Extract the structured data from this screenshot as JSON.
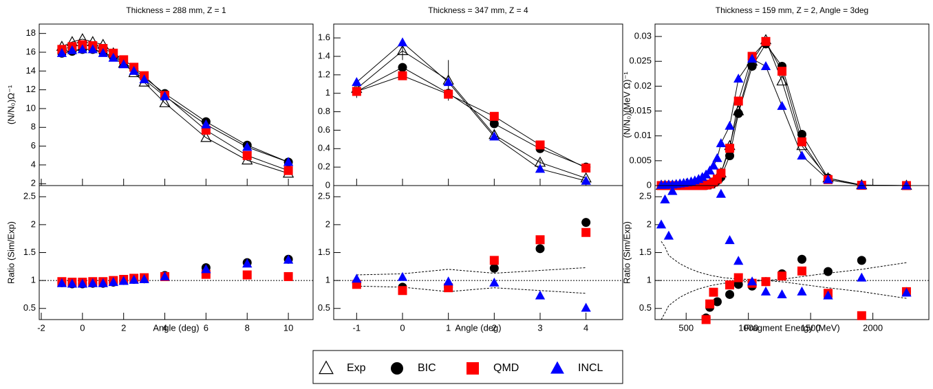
{
  "chart_data": [
    {
      "type": "line",
      "title": "Thickness = 288 mm, Z = 1",
      "ylabel": "(N/N₀)Ω⁻¹",
      "x": [
        -1,
        -0.5,
        0,
        0.5,
        1,
        1.5,
        2,
        2.5,
        3,
        4,
        6,
        8,
        10
      ],
      "xlim": [
        -2.1,
        11.2
      ],
      "xticks": [
        -2,
        0,
        2,
        4,
        6,
        8,
        10
      ],
      "ylim": [
        1.8,
        19
      ],
      "yticks": [
        2,
        4,
        6,
        8,
        10,
        12,
        14,
        16,
        18
      ],
      "series": [
        {
          "name": "Exp",
          "color": "#000000",
          "marker": "open-triangle",
          "values": [
            16.6,
            17.1,
            17.4,
            17.1,
            16.8,
            15.9,
            14.8,
            13.8,
            12.8,
            10.6,
            6.9,
            4.5,
            3.1
          ]
        },
        {
          "name": "BIC",
          "color": "#000000",
          "marker": "circle",
          "values": [
            15.9,
            16.1,
            16.3,
            16.3,
            16.0,
            15.5,
            14.9,
            14.2,
            13.3,
            11.6,
            8.6,
            6.1,
            4.3
          ]
        },
        {
          "name": "QMD",
          "color": "#ff0000",
          "marker": "square",
          "values": [
            16.3,
            16.6,
            16.8,
            16.7,
            16.4,
            15.9,
            15.2,
            14.4,
            13.5,
            11.4,
            7.7,
            5.0,
            3.4
          ]
        },
        {
          "name": "INCL",
          "color": "#0000ff",
          "marker": "triangle",
          "values": [
            15.9,
            16.2,
            16.3,
            16.3,
            15.9,
            15.4,
            14.7,
            14.0,
            13.1,
            11.3,
            8.3,
            5.9,
            4.3
          ]
        }
      ]
    },
    {
      "type": "line",
      "title": "Thickness = 347 mm, Z = 4",
      "x": [
        -1,
        0,
        1,
        2,
        3,
        4
      ],
      "xlim": [
        -1.5,
        4.8
      ],
      "xticks": [
        -1,
        0,
        1,
        2,
        3,
        4
      ],
      "ylim": [
        0,
        1.75
      ],
      "yticks": [
        0,
        0.2,
        0.4,
        0.6,
        0.8,
        1,
        1.2,
        1.4,
        1.6
      ],
      "series": [
        {
          "name": "Exp",
          "color": "#000000",
          "marker": "open-triangle",
          "values": [
            1.05,
            1.46,
            1.14,
            0.55,
            0.25,
            0.08
          ],
          "errors": [
            0.1,
            0.1,
            0.22,
            0.05,
            0.03,
            0.02
          ]
        },
        {
          "name": "BIC",
          "color": "#000000",
          "marker": "circle",
          "values": [
            1.02,
            1.28,
            1.0,
            0.67,
            0.4,
            0.2
          ]
        },
        {
          "name": "QMD",
          "color": "#ff0000",
          "marker": "square",
          "values": [
            1.02,
            1.19,
            0.99,
            0.75,
            0.44,
            0.19
          ]
        },
        {
          "name": "INCL",
          "color": "#0000ff",
          "marker": "triangle",
          "values": [
            1.12,
            1.55,
            1.12,
            0.53,
            0.18,
            0.05
          ]
        }
      ]
    },
    {
      "type": "line",
      "title": "Thickness = 159 mm, Z = 2, Angle = 3deg",
      "ylabel": "(N/N₀)(MeV Ω)⁻¹",
      "x": [
        300,
        330,
        360,
        390,
        420,
        450,
        480,
        510,
        540,
        570,
        600,
        630,
        660,
        690,
        720,
        750,
        780,
        850,
        920,
        1030,
        1140,
        1270,
        1430,
        1640,
        1910,
        2270
      ],
      "xlim": [
        250,
        2450
      ],
      "xticks": [
        500,
        1000,
        1500,
        2000
      ],
      "ylim": [
        0,
        0.0325
      ],
      "yticks": [
        0,
        0.005,
        0.01,
        0.015,
        0.02,
        0.025,
        0.03
      ],
      "series": [
        {
          "name": "Exp",
          "color": "#000000",
          "marker": "open-triangle",
          "values": [
            0,
            0,
            0,
            0,
            0,
            0,
            0,
            0,
            0,
            0,
            0,
            0,
            0.0001,
            0.0003,
            0.0008,
            0.0015,
            0.0025,
            0.008,
            0.015,
            0.025,
            0.0293,
            0.021,
            0.008,
            0.0015,
            0.0001,
            0
          ]
        },
        {
          "name": "BIC",
          "color": "#000000",
          "marker": "circle",
          "values": [
            0,
            0,
            0,
            0,
            0,
            0,
            0,
            0,
            0,
            0,
            0,
            0,
            0.0001,
            0.0002,
            0.0005,
            0.001,
            0.0017,
            0.006,
            0.0145,
            0.024,
            0.0285,
            0.024,
            0.0103,
            0.0015,
            0.0001,
            0
          ]
        },
        {
          "name": "QMD",
          "color": "#ff0000",
          "marker": "square",
          "values": [
            0,
            0,
            0,
            0,
            0,
            0,
            0,
            0,
            0,
            0,
            0,
            0,
            0.0001,
            0.0003,
            0.0007,
            0.0013,
            0.0025,
            0.0075,
            0.017,
            0.026,
            0.029,
            0.023,
            0.0088,
            0.0012,
            5e-05,
            0
          ]
        },
        {
          "name": "INCL",
          "color": "#0000ff",
          "marker": "triangle",
          "values": [
            0.0001,
            0.0001,
            0.0002,
            0.0002,
            0.0003,
            0.0004,
            0.0005,
            0.0006,
            0.0008,
            0.001,
            0.0013,
            0.0017,
            0.0022,
            0.003,
            0.004,
            0.0055,
            0.0085,
            0.012,
            0.0215,
            0.0255,
            0.024,
            0.016,
            0.006,
            0.0012,
            5e-05,
            0
          ]
        }
      ]
    },
    {
      "type": "scatter",
      "xlabel": "Angle (deg)",
      "ylabel": "Ratio (Sim/Exp)",
      "hline": 1,
      "x": [
        -1,
        -0.5,
        0,
        0.5,
        1,
        1.5,
        2,
        2.5,
        3,
        4,
        6,
        8,
        10
      ],
      "xlim": [
        -2.1,
        11.2
      ],
      "xticks": [
        -2,
        0,
        2,
        4,
        6,
        8,
        10
      ],
      "ylim": [
        0.3,
        2.7
      ],
      "yticks": [
        0.5,
        1,
        1.5,
        2,
        2.5
      ],
      "series": [
        {
          "name": "BIC",
          "color": "#000000",
          "marker": "circle",
          "values": [
            0.96,
            0.94,
            0.94,
            0.95,
            0.95,
            0.97,
            1.0,
            1.02,
            1.03,
            1.09,
            1.23,
            1.32,
            1.38
          ]
        },
        {
          "name": "QMD",
          "color": "#ff0000",
          "marker": "square",
          "values": [
            0.98,
            0.97,
            0.97,
            0.98,
            0.98,
            1.0,
            1.02,
            1.04,
            1.05,
            1.07,
            1.11,
            1.1,
            1.07
          ]
        },
        {
          "name": "INCL",
          "color": "#0000ff",
          "marker": "triangle",
          "values": [
            0.95,
            0.94,
            0.94,
            0.95,
            0.95,
            0.97,
            0.99,
            1.01,
            1.02,
            1.07,
            1.2,
            1.3,
            1.37
          ]
        }
      ]
    },
    {
      "type": "scatter",
      "xlabel": "Angle (deg)",
      "hline": 1,
      "x": [
        -1,
        0,
        1,
        2,
        3,
        4
      ],
      "xlim": [
        -1.5,
        4.8
      ],
      "xticks": [
        -1,
        0,
        1,
        2,
        3,
        4
      ],
      "ylim": [
        0.3,
        2.7
      ],
      "yticks": [
        0.5,
        1,
        1.5,
        2,
        2.5
      ],
      "band_x": [
        -1,
        0,
        1,
        2,
        3,
        4
      ],
      "band_upper": [
        1.1,
        1.12,
        1.2,
        1.13,
        1.18,
        1.23
      ],
      "band_lower": [
        0.9,
        0.88,
        0.8,
        0.87,
        0.82,
        0.77
      ],
      "series": [
        {
          "name": "BIC",
          "color": "#000000",
          "marker": "circle",
          "values": [
            0.95,
            0.88,
            0.88,
            1.22,
            1.57,
            2.04
          ]
        },
        {
          "name": "QMD",
          "color": "#ff0000",
          "marker": "square",
          "values": [
            0.93,
            0.82,
            0.87,
            1.36,
            1.73,
            1.86
          ]
        },
        {
          "name": "INCL",
          "color": "#0000ff",
          "marker": "triangle",
          "values": [
            1.03,
            1.06,
            0.98,
            0.96,
            0.73,
            0.51
          ]
        }
      ]
    },
    {
      "type": "scatter",
      "xlabel": "Fragment Energy (MeV)",
      "ylabel": "Ratio (Sim/Exp)",
      "hline": 1,
      "x": [
        300,
        330,
        360,
        390,
        420,
        450,
        480,
        510,
        540,
        570,
        600,
        630,
        660,
        690,
        720,
        750,
        780,
        850,
        920,
        1030,
        1140,
        1270,
        1430,
        1640,
        1910,
        2270
      ],
      "xlim": [
        250,
        2450
      ],
      "xticks": [
        500,
        1000,
        1500,
        2000
      ],
      "ylim": [
        0.3,
        2.7
      ],
      "yticks": [
        0.5,
        1,
        1.5,
        2,
        2.5
      ],
      "band_x": [
        300,
        330,
        360,
        400,
        450,
        520,
        600,
        700,
        800,
        900,
        1000,
        1140,
        1300,
        1430,
        1600,
        1910,
        2270
      ],
      "band_upper": [
        1.7,
        1.6,
        1.45,
        1.38,
        1.3,
        1.22,
        1.15,
        1.09,
        1.05,
        1.03,
        1.02,
        1.0,
        1.03,
        1.07,
        1.12,
        1.2,
        1.32
      ],
      "band_lower": [
        0.3,
        0.42,
        0.55,
        0.62,
        0.7,
        0.78,
        0.85,
        0.91,
        0.95,
        0.97,
        0.98,
        1.0,
        0.97,
        0.93,
        0.88,
        0.8,
        0.68
      ],
      "series": [
        {
          "name": "BIC",
          "color": "#000000",
          "marker": "circle",
          "values": [
            null,
            null,
            null,
            null,
            null,
            null,
            null,
            null,
            null,
            null,
            null,
            null,
            0.33,
            0.52,
            null,
            0.62,
            null,
            0.75,
            0.93,
            0.9,
            0.98,
            1.12,
            1.38,
            1.16,
            1.36,
            0.8
          ]
        },
        {
          "name": "QMD",
          "color": "#ff0000",
          "marker": "square",
          "values": [
            null,
            null,
            null,
            null,
            null,
            null,
            null,
            null,
            null,
            null,
            null,
            null,
            0.3,
            0.58,
            0.79,
            null,
            null,
            0.92,
            1.05,
            0.95,
            0.98,
            1.08,
            1.17,
            0.77,
            0.37,
            0.8
          ]
        },
        {
          "name": "INCL",
          "color": "#0000ff",
          "marker": "triangle",
          "values": [
            2.0,
            2.45,
            1.8,
            2.6,
            null,
            null,
            null,
            null,
            null,
            null,
            null,
            null,
            null,
            null,
            null,
            null,
            2.55,
            1.72,
            1.35,
            0.98,
            0.8,
            0.75,
            0.8,
            0.73,
            1.05,
            0.78
          ]
        }
      ]
    }
  ]
}
